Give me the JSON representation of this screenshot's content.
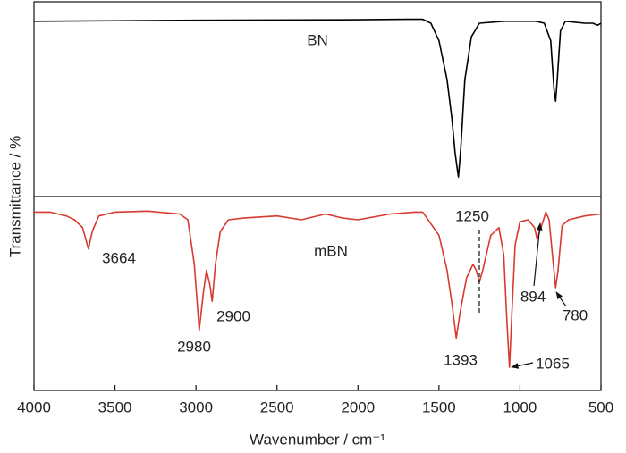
{
  "chart_data": [
    {
      "type": "line",
      "y_label": "Transmittance / %",
      "ylim": [
        0,
        100
      ],
      "xlim": [
        4000,
        500
      ],
      "x": [
        4000,
        3000,
        2000,
        1700,
        1600,
        1550,
        1500,
        1450,
        1420,
        1400,
        1380,
        1365,
        1340,
        1300,
        1250,
        1100,
        900,
        850,
        810,
        790,
        780,
        770,
        750,
        720,
        600,
        550,
        520,
        500
      ],
      "series": [
        {
          "name": "BN",
          "color": "#000000",
          "values": [
            90,
            90.5,
            90.8,
            91,
            91,
            89,
            80,
            60,
            40,
            22,
            10,
            25,
            60,
            82,
            89,
            90,
            90,
            89,
            80,
            55,
            49,
            60,
            85,
            90,
            89,
            89,
            88,
            89
          ]
        }
      ]
    },
    {
      "type": "line",
      "x_label": "Wavenumber / cm⁻¹",
      "ylim": [
        0,
        100
      ],
      "xlim": [
        4000,
        500
      ],
      "xticks": [
        4000,
        3500,
        3000,
        2500,
        2000,
        1500,
        1000,
        500
      ],
      "x": [
        4000,
        3900,
        3800,
        3750,
        3700,
        3664,
        3640,
        3600,
        3500,
        3300,
        3100,
        3050,
        3010,
        2980,
        2955,
        2935,
        2915,
        2900,
        2880,
        2850,
        2800,
        2700,
        2500,
        2350,
        2200,
        2100,
        2000,
        1800,
        1650,
        1600,
        1550,
        1500,
        1450,
        1420,
        1393,
        1370,
        1330,
        1290,
        1270,
        1250,
        1230,
        1180,
        1130,
        1100,
        1080,
        1065,
        1050,
        1030,
        1000,
        950,
        910,
        894,
        870,
        840,
        820,
        800,
        780,
        765,
        740,
        700,
        600,
        500
      ],
      "series": [
        {
          "name": "mBN",
          "color": "#d93a2f",
          "values": [
            92,
            92,
            90,
            88,
            84,
            73,
            82,
            90,
            92,
            92.5,
            91,
            88,
            65,
            31,
            50,
            62,
            55,
            46,
            65,
            82,
            88,
            89,
            90,
            88,
            91,
            89,
            88,
            91,
            92,
            92,
            86,
            80,
            62,
            45,
            27,
            40,
            58,
            65,
            62,
            56,
            62,
            80,
            84,
            70,
            35,
            12,
            40,
            75,
            87,
            88,
            84,
            78,
            84,
            92,
            88,
            70,
            53,
            62,
            85,
            88,
            90,
            91
          ]
        }
      ],
      "annotations": [
        "3664",
        "2980",
        "2900",
        "1393",
        "1250",
        "1065",
        "894",
        "780"
      ]
    }
  ]
}
